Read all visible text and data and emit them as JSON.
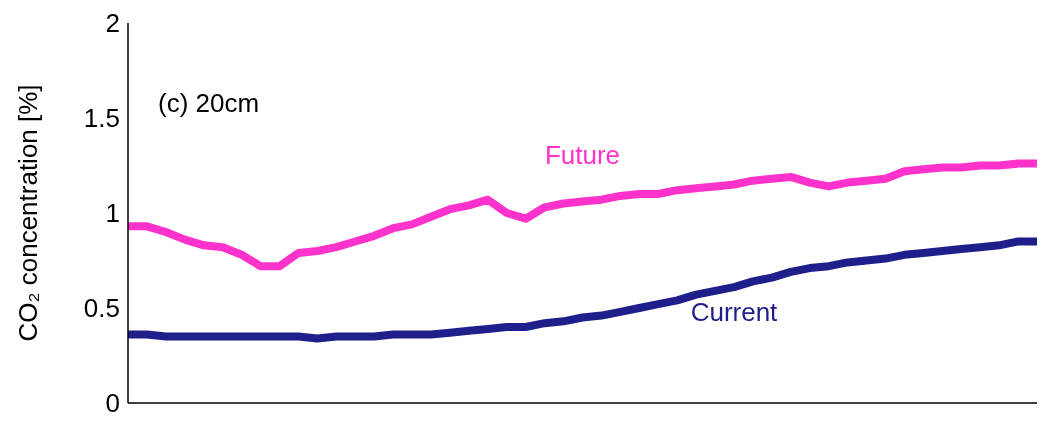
{
  "chart_data": {
    "type": "line",
    "ylabel": "CO₂ concentration [%]",
    "annotations": [
      "(c) 20cm"
    ],
    "categories": [
      null,
      null,
      null,
      null,
      null,
      null,
      null,
      null,
      null,
      null,
      null,
      null,
      null,
      null,
      null,
      null,
      null,
      null,
      null,
      null,
      null,
      null,
      null,
      null,
      null,
      null,
      null,
      null,
      null,
      null,
      null,
      null,
      null,
      null,
      null,
      null,
      null,
      null,
      null,
      null,
      null,
      null,
      null,
      null,
      null,
      null,
      null,
      null,
      null
    ],
    "ylim": [
      0,
      2
    ],
    "yticks": [
      0,
      0.5,
      1,
      1.5,
      2
    ],
    "grid": false,
    "legend": false,
    "series": [
      {
        "name": "Future",
        "color": "#ff33cc",
        "values": [
          0.93,
          0.93,
          0.9,
          0.86,
          0.83,
          0.82,
          0.78,
          0.72,
          0.72,
          0.79,
          0.8,
          0.82,
          0.85,
          0.88,
          0.92,
          0.94,
          0.98,
          1.02,
          1.04,
          1.07,
          1.0,
          0.97,
          1.03,
          1.05,
          1.06,
          1.07,
          1.09,
          1.1,
          1.1,
          1.12,
          1.13,
          1.14,
          1.15,
          1.17,
          1.18,
          1.19,
          1.16,
          1.14,
          1.16,
          1.17,
          1.18,
          1.22,
          1.23,
          1.24,
          1.24,
          1.25,
          1.25,
          1.26,
          1.26
        ]
      },
      {
        "name": "Current",
        "color": "#1f1f8c",
        "values": [
          0.36,
          0.36,
          0.35,
          0.35,
          0.35,
          0.35,
          0.35,
          0.35,
          0.35,
          0.35,
          0.34,
          0.35,
          0.35,
          0.35,
          0.36,
          0.36,
          0.36,
          0.37,
          0.38,
          0.39,
          0.4,
          0.4,
          0.42,
          0.43,
          0.45,
          0.46,
          0.48,
          0.5,
          0.52,
          0.54,
          0.57,
          0.59,
          0.61,
          0.64,
          0.66,
          0.69,
          0.71,
          0.72,
          0.74,
          0.75,
          0.76,
          0.78,
          0.79,
          0.8,
          0.81,
          0.82,
          0.83,
          0.85,
          0.85
        ]
      }
    ]
  }
}
